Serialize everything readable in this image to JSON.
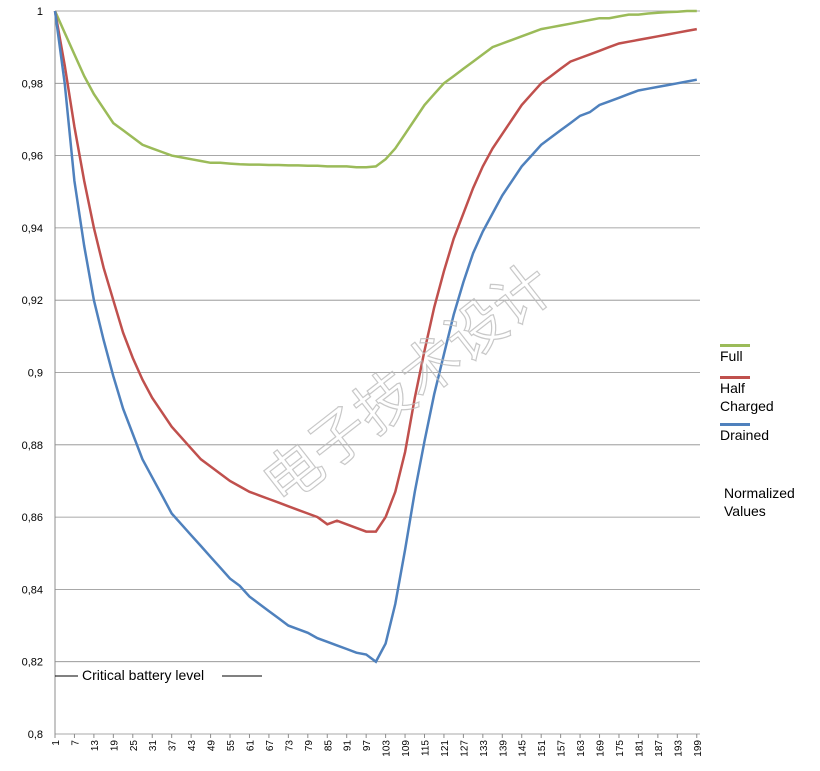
{
  "chart_data": {
    "type": "line",
    "x": [
      1,
      4,
      7,
      10,
      13,
      16,
      19,
      22,
      25,
      28,
      31,
      34,
      37,
      40,
      43,
      46,
      49,
      52,
      55,
      58,
      61,
      64,
      67,
      70,
      73,
      76,
      79,
      82,
      85,
      88,
      91,
      94,
      97,
      100,
      103,
      106,
      109,
      112,
      115,
      118,
      121,
      124,
      127,
      130,
      133,
      136,
      139,
      142,
      145,
      148,
      151,
      154,
      157,
      160,
      163,
      166,
      169,
      172,
      175,
      178,
      181,
      184,
      187,
      190,
      193,
      196,
      199
    ],
    "xlim": [
      1,
      200
    ],
    "xticks": [
      1,
      7,
      13,
      19,
      25,
      31,
      37,
      43,
      49,
      55,
      61,
      67,
      73,
      79,
      85,
      91,
      97,
      103,
      109,
      115,
      121,
      127,
      133,
      139,
      145,
      151,
      157,
      163,
      169,
      175,
      181,
      187,
      193,
      199
    ],
    "ylim": [
      0.8,
      1
    ],
    "yticks": [
      {
        "value": 0.8,
        "label": "0,8"
      },
      {
        "value": 0.82,
        "label": "0,82"
      },
      {
        "value": 0.84,
        "label": "0,84"
      },
      {
        "value": 0.86,
        "label": "0,86"
      },
      {
        "value": 0.88,
        "label": "0,88"
      },
      {
        "value": 0.9,
        "label": "0,9"
      },
      {
        "value": 0.92,
        "label": "0,92"
      },
      {
        "value": 0.94,
        "label": "0,94"
      },
      {
        "value": 0.96,
        "label": "0,96"
      },
      {
        "value": 0.98,
        "label": "0,98"
      },
      1
    ],
    "grid": true,
    "series": [
      {
        "name": "Full",
        "color": "#9bbb59",
        "values": [
          1.0,
          0.994,
          0.988,
          0.982,
          0.977,
          0.973,
          0.969,
          0.967,
          0.965,
          0.963,
          0.962,
          0.961,
          0.96,
          0.9595,
          0.959,
          0.9585,
          0.958,
          0.958,
          0.9578,
          0.9576,
          0.9575,
          0.9575,
          0.9574,
          0.9574,
          0.9573,
          0.9573,
          0.9572,
          0.9572,
          0.957,
          0.957,
          0.957,
          0.9568,
          0.9568,
          0.957,
          0.959,
          0.962,
          0.966,
          0.97,
          0.974,
          0.977,
          0.98,
          0.982,
          0.984,
          0.986,
          0.988,
          0.99,
          0.991,
          0.992,
          0.993,
          0.994,
          0.995,
          0.9955,
          0.996,
          0.9965,
          0.997,
          0.9975,
          0.998,
          0.998,
          0.9985,
          0.999,
          0.999,
          0.9993,
          0.9995,
          0.9997,
          0.9998,
          1.0,
          1.0
        ]
      },
      {
        "name": "Half Charged",
        "color": "#c0504d",
        "values": [
          1.0,
          0.985,
          0.968,
          0.953,
          0.94,
          0.929,
          0.92,
          0.911,
          0.904,
          0.898,
          0.893,
          0.889,
          0.885,
          0.882,
          0.879,
          0.876,
          0.874,
          0.872,
          0.87,
          0.8685,
          0.867,
          0.866,
          0.865,
          0.864,
          0.863,
          0.862,
          0.861,
          0.86,
          0.858,
          0.859,
          0.858,
          0.857,
          0.856,
          0.856,
          0.86,
          0.867,
          0.878,
          0.893,
          0.906,
          0.918,
          0.928,
          0.937,
          0.944,
          0.951,
          0.957,
          0.962,
          0.966,
          0.97,
          0.974,
          0.977,
          0.98,
          0.982,
          0.984,
          0.986,
          0.987,
          0.988,
          0.989,
          0.99,
          0.991,
          0.9915,
          0.992,
          0.9925,
          0.993,
          0.9935,
          0.994,
          0.9945,
          0.995
        ]
      },
      {
        "name": "Drained",
        "color": "#4f81bd",
        "values": [
          1.0,
          0.98,
          0.953,
          0.935,
          0.92,
          0.909,
          0.899,
          0.89,
          0.883,
          0.876,
          0.871,
          0.866,
          0.861,
          0.858,
          0.855,
          0.852,
          0.849,
          0.846,
          0.843,
          0.841,
          0.838,
          0.836,
          0.834,
          0.832,
          0.83,
          0.829,
          0.828,
          0.8265,
          0.8255,
          0.8245,
          0.8235,
          0.8225,
          0.822,
          0.82,
          0.825,
          0.836,
          0.851,
          0.867,
          0.881,
          0.894,
          0.905,
          0.916,
          0.925,
          0.933,
          0.939,
          0.944,
          0.949,
          0.953,
          0.957,
          0.96,
          0.963,
          0.965,
          0.967,
          0.969,
          0.971,
          0.972,
          0.974,
          0.975,
          0.976,
          0.977,
          0.978,
          0.9785,
          0.979,
          0.9795,
          0.98,
          0.9805,
          0.981
        ]
      }
    ],
    "annotation": "Critical battery level",
    "legend_title": "Normalized Values",
    "watermark": "电子技术设计"
  }
}
